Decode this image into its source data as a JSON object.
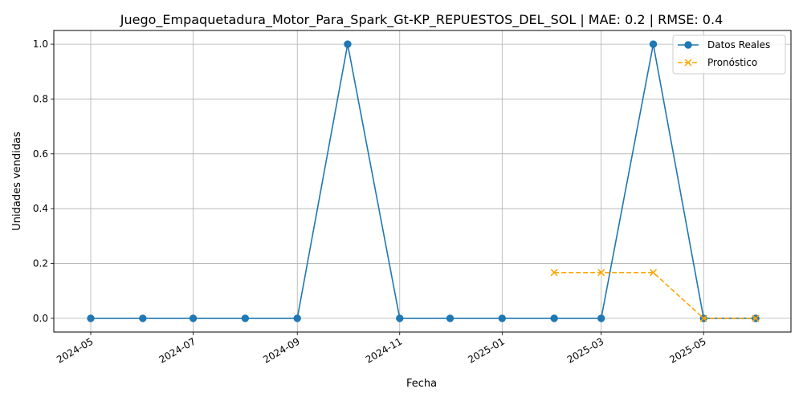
{
  "chart_data": {
    "type": "line",
    "title": "Juego_Empaquetadura_Motor_Para_Spark_Gt-KP_REPUESTOS_DEL_SOL | MAE: 0.2 | RMSE: 0.4",
    "xlabel": "Fecha",
    "ylabel": "Unidades vendidas",
    "x_ticks": [
      "2024-05",
      "2024-07",
      "2024-09",
      "2024-11",
      "2025-01",
      "2025-03",
      "2025-05"
    ],
    "y_ticks": [
      "0.0",
      "0.2",
      "0.4",
      "0.6",
      "0.8",
      "1.0"
    ],
    "xlim": [
      "2024-04-09",
      "2025-06-22"
    ],
    "ylim": [
      -0.05,
      1.05
    ],
    "grid": true,
    "legend": "top-right",
    "series": [
      {
        "name": "Datos Reales",
        "color": "#1f77b4",
        "style": "solid",
        "marker": "circle",
        "points": [
          {
            "x": "2024-05-01",
            "y": 0
          },
          {
            "x": "2024-06-01",
            "y": 0
          },
          {
            "x": "2024-07-01",
            "y": 0
          },
          {
            "x": "2024-08-01",
            "y": 0
          },
          {
            "x": "2024-09-01",
            "y": 0
          },
          {
            "x": "2024-10-01",
            "y": 1
          },
          {
            "x": "2024-11-01",
            "y": 0
          },
          {
            "x": "2024-12-01",
            "y": 0
          },
          {
            "x": "2025-01-01",
            "y": 0
          },
          {
            "x": "2025-02-01",
            "y": 0
          },
          {
            "x": "2025-03-01",
            "y": 0
          },
          {
            "x": "2025-04-01",
            "y": 1
          },
          {
            "x": "2025-05-01",
            "y": 0
          },
          {
            "x": "2025-06-01",
            "y": 0
          }
        ]
      },
      {
        "name": "Pronóstico",
        "color": "#ffa500",
        "style": "dashed",
        "marker": "x",
        "points": [
          {
            "x": "2025-02-01",
            "y": 0.167
          },
          {
            "x": "2025-03-01",
            "y": 0.167
          },
          {
            "x": "2025-04-01",
            "y": 0.167
          },
          {
            "x": "2025-05-01",
            "y": 0
          },
          {
            "x": "2025-06-01",
            "y": 0
          }
        ]
      }
    ]
  }
}
